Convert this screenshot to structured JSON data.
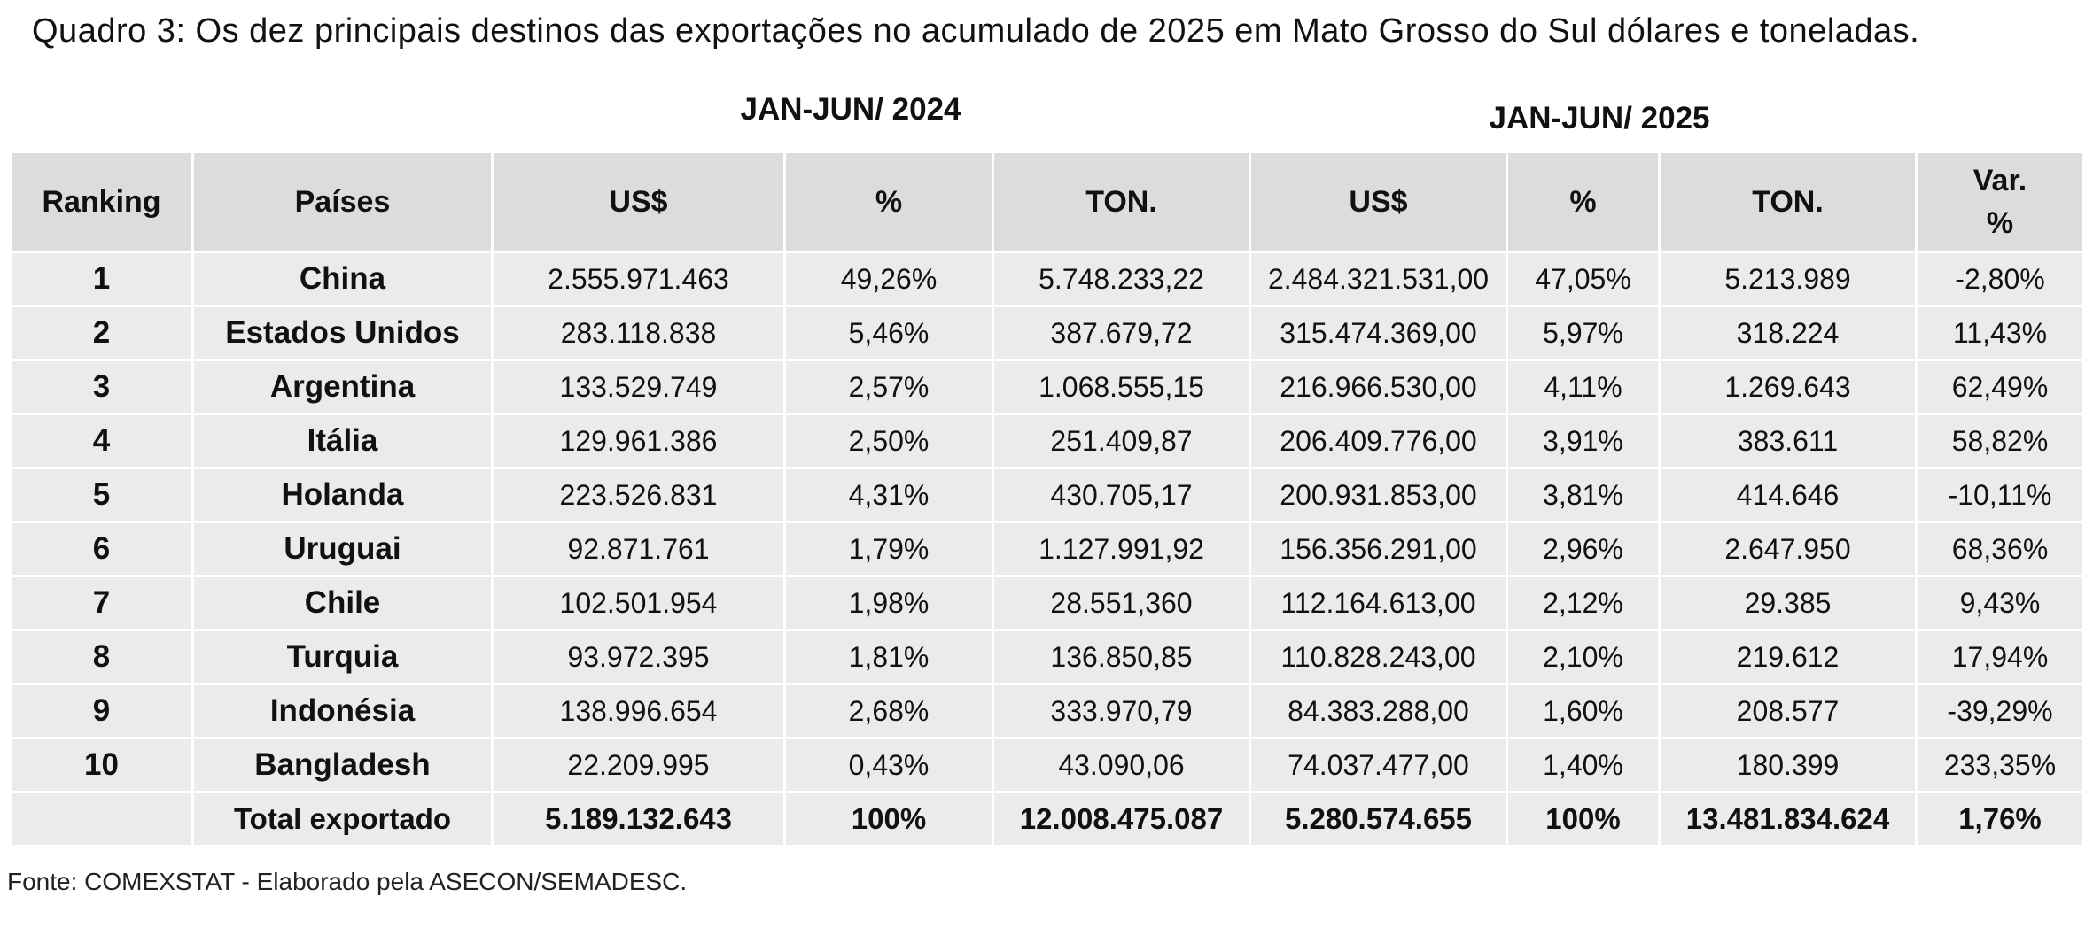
{
  "caption": "Quadro 3: Os dez principais destinos das exportações no acumulado de 2025 em Mato Grosso do Sul dólares e toneladas.",
  "periods": {
    "p2024": "JAN-JUN/ 2024",
    "p2025": "JAN-JUN/ 2025"
  },
  "headers": {
    "ranking": "Ranking",
    "paises": "Países",
    "usd_2024": "US$",
    "pct_2024": "%",
    "ton_2024": "TON.",
    "usd_2025": "US$",
    "pct_2025": "%",
    "ton_2025": "TON.",
    "var_line1": "Var.",
    "var_line2": "%"
  },
  "rows": [
    {
      "rank": "1",
      "country": "China",
      "usd_2024": "2.555.971.463",
      "pct_2024": "49,26%",
      "ton_2024": "5.748.233,22",
      "usd_2025": "2.484.321.531,00",
      "pct_2025": "47,05%",
      "ton_2025": "5.213.989",
      "var": "-2,80%"
    },
    {
      "rank": "2",
      "country": "Estados Unidos",
      "usd_2024": "283.118.838",
      "pct_2024": "5,46%",
      "ton_2024": "387.679,72",
      "usd_2025": "315.474.369,00",
      "pct_2025": "5,97%",
      "ton_2025": "318.224",
      "var": "11,43%"
    },
    {
      "rank": "3",
      "country": "Argentina",
      "usd_2024": "133.529.749",
      "pct_2024": "2,57%",
      "ton_2024": "1.068.555,15",
      "usd_2025": "216.966.530,00",
      "pct_2025": "4,11%",
      "ton_2025": "1.269.643",
      "var": "62,49%"
    },
    {
      "rank": "4",
      "country": "Itália",
      "usd_2024": "129.961.386",
      "pct_2024": "2,50%",
      "ton_2024": "251.409,87",
      "usd_2025": "206.409.776,00",
      "pct_2025": "3,91%",
      "ton_2025": "383.611",
      "var": "58,82%"
    },
    {
      "rank": "5",
      "country": "Holanda",
      "usd_2024": "223.526.831",
      "pct_2024": "4,31%",
      "ton_2024": "430.705,17",
      "usd_2025": "200.931.853,00",
      "pct_2025": "3,81%",
      "ton_2025": "414.646",
      "var": "-10,11%"
    },
    {
      "rank": "6",
      "country": "Uruguai",
      "usd_2024": "92.871.761",
      "pct_2024": "1,79%",
      "ton_2024": "1.127.991,92",
      "usd_2025": "156.356.291,00",
      "pct_2025": "2,96%",
      "ton_2025": "2.647.950",
      "var": "68,36%"
    },
    {
      "rank": "7",
      "country": "Chile",
      "usd_2024": "102.501.954",
      "pct_2024": "1,98%",
      "ton_2024": "28.551,360",
      "usd_2025": "112.164.613,00",
      "pct_2025": "2,12%",
      "ton_2025": "29.385",
      "var": "9,43%"
    },
    {
      "rank": "8",
      "country": "Turquia",
      "usd_2024": "93.972.395",
      "pct_2024": "1,81%",
      "ton_2024": "136.850,85",
      "usd_2025": "110.828.243,00",
      "pct_2025": "2,10%",
      "ton_2025": "219.612",
      "var": "17,94%"
    },
    {
      "rank": "9",
      "country": "Indonésia",
      "usd_2024": "138.996.654",
      "pct_2024": "2,68%",
      "ton_2024": "333.970,79",
      "usd_2025": "84.383.288,00",
      "pct_2025": "1,60%",
      "ton_2025": "208.577",
      "var": "-39,29%"
    },
    {
      "rank": "10",
      "country": "Bangladesh",
      "usd_2024": "22.209.995",
      "pct_2024": "0,43%",
      "ton_2024": "43.090,06",
      "usd_2025": "74.037.477,00",
      "pct_2025": "1,40%",
      "ton_2025": "180.399",
      "var": "233,35%"
    }
  ],
  "total": {
    "label": "Total exportado",
    "usd_2024": "5.189.132.643",
    "pct_2024": "100%",
    "ton_2024": "12.008.475.087",
    "usd_2025": "5.280.574.655",
    "pct_2025": "100%",
    "ton_2025": "13.481.834.624",
    "var": "1,76%"
  },
  "footnote": "Fonte: COMEXSTAT - Elaborado pela ASECON/SEMADESC."
}
